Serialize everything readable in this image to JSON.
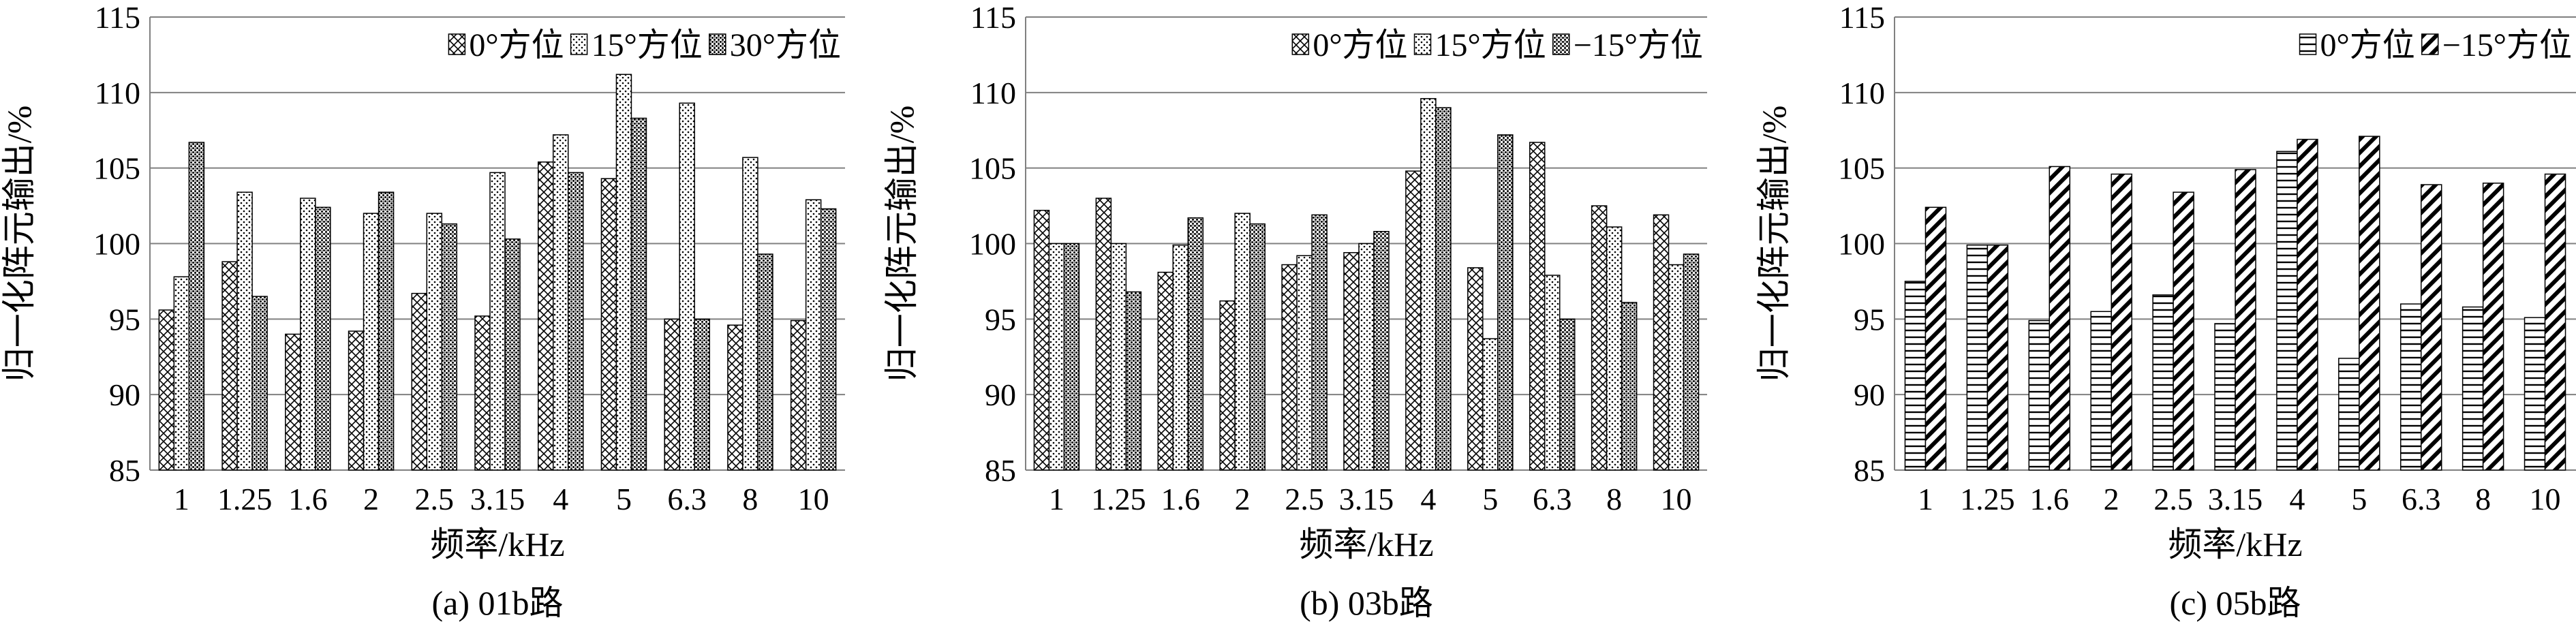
{
  "chart_data": [
    {
      "type": "bar",
      "caption": "(a) 01b路",
      "xlabel": "频率/kHz",
      "ylabel": "归一化阵元输出/%",
      "ylim": [
        85,
        115
      ],
      "yticks": [
        85,
        90,
        95,
        100,
        105,
        110,
        115
      ],
      "categories": [
        "1",
        "1.25",
        "1.6",
        "2",
        "2.5",
        "3.15",
        "4",
        "5",
        "6.3",
        "8",
        "10"
      ],
      "grid": "horizontal",
      "legend_position": "top-right",
      "series": [
        {
          "name": "0°方位",
          "pattern": "crosshatch",
          "values": [
            95.6,
            98.8,
            94.0,
            94.2,
            96.7,
            95.2,
            105.4,
            104.3,
            95.0,
            94.6,
            94.9
          ]
        },
        {
          "name": "15°方位",
          "pattern": "dots",
          "values": [
            97.8,
            103.4,
            103.0,
            102.0,
            102.0,
            104.7,
            107.2,
            111.2,
            109.3,
            105.7,
            102.9
          ]
        },
        {
          "name": "30°方位",
          "pattern": "dense-dots",
          "values": [
            106.7,
            96.5,
            102.4,
            103.4,
            101.3,
            100.3,
            104.7,
            108.3,
            95.0,
            99.3,
            102.3
          ]
        }
      ]
    },
    {
      "type": "bar",
      "caption": "(b) 03b路",
      "xlabel": "频率/kHz",
      "ylabel": "归一化阵元输出/%",
      "ylim": [
        85,
        115
      ],
      "yticks": [
        85,
        90,
        95,
        100,
        105,
        110,
        115
      ],
      "categories": [
        "1",
        "1.25",
        "1.6",
        "2",
        "2.5",
        "3.15",
        "4",
        "5",
        "6.3",
        "8",
        "10"
      ],
      "grid": "horizontal",
      "legend_position": "top-right",
      "series": [
        {
          "name": "0°方位",
          "pattern": "crosshatch",
          "values": [
            102.2,
            103.0,
            98.1,
            96.2,
            98.6,
            99.4,
            104.8,
            98.4,
            106.7,
            102.5,
            101.9
          ]
        },
        {
          "name": "15°方位",
          "pattern": "dots",
          "values": [
            100.0,
            100.0,
            99.9,
            102.0,
            99.2,
            100.0,
            109.6,
            93.7,
            97.9,
            101.1,
            98.6
          ]
        },
        {
          "name": "−15°方位",
          "pattern": "dense-dots",
          "values": [
            100.0,
            96.8,
            101.7,
            101.3,
            101.9,
            100.8,
            109.0,
            107.2,
            95.0,
            96.1,
            99.3
          ]
        }
      ]
    },
    {
      "type": "bar",
      "caption": "(c) 05b路",
      "xlabel": "频率/kHz",
      "ylabel": "归一化阵元输出/%",
      "ylim": [
        85,
        115
      ],
      "yticks": [
        85,
        90,
        95,
        100,
        105,
        110,
        115
      ],
      "categories": [
        "1",
        "1.25",
        "1.6",
        "2",
        "2.5",
        "3.15",
        "4",
        "5",
        "6.3",
        "8",
        "10"
      ],
      "grid": "horizontal",
      "legend_position": "top-right",
      "series": [
        {
          "name": "0°方位",
          "pattern": "horizontal-lines",
          "values": [
            97.5,
            99.9,
            94.9,
            95.5,
            96.6,
            94.7,
            106.1,
            92.4,
            96.0,
            95.8,
            95.1
          ]
        },
        {
          "name": "−15°方位",
          "pattern": "diagonal-lines",
          "values": [
            102.4,
            99.9,
            105.1,
            104.6,
            103.4,
            104.9,
            106.9,
            107.1,
            103.9,
            104.0,
            104.6
          ]
        }
      ]
    }
  ]
}
